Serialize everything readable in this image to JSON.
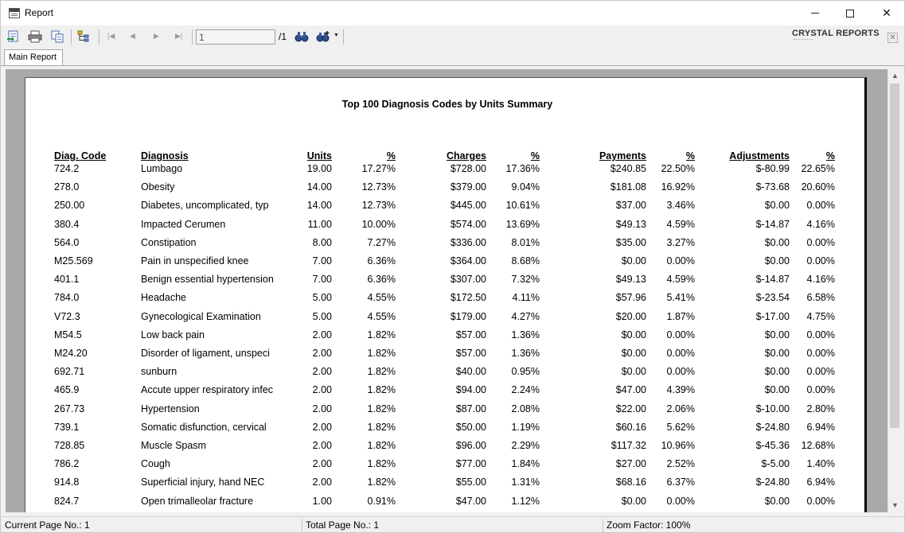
{
  "window": {
    "title": "Report"
  },
  "toolbar": {
    "page_current": "1",
    "page_total": "/1",
    "brand": "CRYSTAL REPORTS",
    "icons": [
      "export-icon",
      "print-icon",
      "copy-icon",
      "group-tree-icon",
      "first-page-icon",
      "prev-page-icon",
      "next-page-icon",
      "last-page-icon",
      "find-icon",
      "zoom-icon"
    ]
  },
  "tabs": [
    {
      "label": "Main Report"
    }
  ],
  "report": {
    "title": "Top 100 Diagnosis Codes by Units Summary",
    "headers": {
      "code": "Diag. Code",
      "diagnosis": "Diagnosis",
      "units": "Units",
      "units_pct": "%",
      "charges": "Charges",
      "charges_pct": "%",
      "payments": "Payments",
      "payments_pct": "%",
      "adjustments": "Adjustments",
      "adjustments_pct": "%"
    },
    "rows": [
      {
        "code": "724.2",
        "diagnosis": "Lumbago",
        "units": "19.00",
        "units_pct": "17.27%",
        "charges": "$728.00",
        "charges_pct": "17.36%",
        "payments": "$240.85",
        "payments_pct": "22.50%",
        "adjustments": "$-80.99",
        "adjustments_pct": "22.65%"
      },
      {
        "code": "278.0",
        "diagnosis": "Obesity",
        "units": "14.00",
        "units_pct": "12.73%",
        "charges": "$379.00",
        "charges_pct": "9.04%",
        "payments": "$181.08",
        "payments_pct": "16.92%",
        "adjustments": "$-73.68",
        "adjustments_pct": "20.60%"
      },
      {
        "code": "250.00",
        "diagnosis": "Diabetes, uncomplicated, typ",
        "units": "14.00",
        "units_pct": "12.73%",
        "charges": "$445.00",
        "charges_pct": "10.61%",
        "payments": "$37.00",
        "payments_pct": "3.46%",
        "adjustments": "$0.00",
        "adjustments_pct": "0.00%"
      },
      {
        "code": "380.4",
        "diagnosis": "Impacted Cerumen",
        "units": "11.00",
        "units_pct": "10.00%",
        "charges": "$574.00",
        "charges_pct": "13.69%",
        "payments": "$49.13",
        "payments_pct": "4.59%",
        "adjustments": "$-14.87",
        "adjustments_pct": "4.16%"
      },
      {
        "code": "564.0",
        "diagnosis": "Constipation",
        "units": "8.00",
        "units_pct": "7.27%",
        "charges": "$336.00",
        "charges_pct": "8.01%",
        "payments": "$35.00",
        "payments_pct": "3.27%",
        "adjustments": "$0.00",
        "adjustments_pct": "0.00%"
      },
      {
        "code": "M25.569",
        "diagnosis": "Pain in unspecified knee",
        "units": "7.00",
        "units_pct": "6.36%",
        "charges": "$364.00",
        "charges_pct": "8.68%",
        "payments": "$0.00",
        "payments_pct": "0.00%",
        "adjustments": "$0.00",
        "adjustments_pct": "0.00%"
      },
      {
        "code": "401.1",
        "diagnosis": "Benign essential hypertension",
        "units": "7.00",
        "units_pct": "6.36%",
        "charges": "$307.00",
        "charges_pct": "7.32%",
        "payments": "$49.13",
        "payments_pct": "4.59%",
        "adjustments": "$-14.87",
        "adjustments_pct": "4.16%"
      },
      {
        "code": "784.0",
        "diagnosis": "Headache",
        "units": "5.00",
        "units_pct": "4.55%",
        "charges": "$172.50",
        "charges_pct": "4.11%",
        "payments": "$57.96",
        "payments_pct": "5.41%",
        "adjustments": "$-23.54",
        "adjustments_pct": "6.58%"
      },
      {
        "code": "V72.3",
        "diagnosis": "Gynecological Examination",
        "units": "5.00",
        "units_pct": "4.55%",
        "charges": "$179.00",
        "charges_pct": "4.27%",
        "payments": "$20.00",
        "payments_pct": "1.87%",
        "adjustments": "$-17.00",
        "adjustments_pct": "4.75%"
      },
      {
        "code": "M54.5",
        "diagnosis": "Low back pain",
        "units": "2.00",
        "units_pct": "1.82%",
        "charges": "$57.00",
        "charges_pct": "1.36%",
        "payments": "$0.00",
        "payments_pct": "0.00%",
        "adjustments": "$0.00",
        "adjustments_pct": "0.00%"
      },
      {
        "code": "M24.20",
        "diagnosis": "Disorder of ligament, unspeci",
        "units": "2.00",
        "units_pct": "1.82%",
        "charges": "$57.00",
        "charges_pct": "1.36%",
        "payments": "$0.00",
        "payments_pct": "0.00%",
        "adjustments": "$0.00",
        "adjustments_pct": "0.00%"
      },
      {
        "code": "692.71",
        "diagnosis": "sunburn",
        "units": "2.00",
        "units_pct": "1.82%",
        "charges": "$40.00",
        "charges_pct": "0.95%",
        "payments": "$0.00",
        "payments_pct": "0.00%",
        "adjustments": "$0.00",
        "adjustments_pct": "0.00%"
      },
      {
        "code": "465.9",
        "diagnosis": "Accute upper respiratory infec",
        "units": "2.00",
        "units_pct": "1.82%",
        "charges": "$94.00",
        "charges_pct": "2.24%",
        "payments": "$47.00",
        "payments_pct": "4.39%",
        "adjustments": "$0.00",
        "adjustments_pct": "0.00%"
      },
      {
        "code": "267.73",
        "diagnosis": "Hypertension",
        "units": "2.00",
        "units_pct": "1.82%",
        "charges": "$87.00",
        "charges_pct": "2.08%",
        "payments": "$22.00",
        "payments_pct": "2.06%",
        "adjustments": "$-10.00",
        "adjustments_pct": "2.80%"
      },
      {
        "code": "739.1",
        "diagnosis": "Somatic disfunction, cervical",
        "units": "2.00",
        "units_pct": "1.82%",
        "charges": "$50.00",
        "charges_pct": "1.19%",
        "payments": "$60.16",
        "payments_pct": "5.62%",
        "adjustments": "$-24.80",
        "adjustments_pct": "6.94%"
      },
      {
        "code": "728.85",
        "diagnosis": "Muscle Spasm",
        "units": "2.00",
        "units_pct": "1.82%",
        "charges": "$96.00",
        "charges_pct": "2.29%",
        "payments": "$117.32",
        "payments_pct": "10.96%",
        "adjustments": "$-45.36",
        "adjustments_pct": "12.68%"
      },
      {
        "code": "786.2",
        "diagnosis": "Cough",
        "units": "2.00",
        "units_pct": "1.82%",
        "charges": "$77.00",
        "charges_pct": "1.84%",
        "payments": "$27.00",
        "payments_pct": "2.52%",
        "adjustments": "$-5.00",
        "adjustments_pct": "1.40%"
      },
      {
        "code": "914.8",
        "diagnosis": "Superficial injury, hand NEC",
        "units": "2.00",
        "units_pct": "1.82%",
        "charges": "$55.00",
        "charges_pct": "1.31%",
        "payments": "$68.16",
        "payments_pct": "6.37%",
        "adjustments": "$-24.80",
        "adjustments_pct": "6.94%"
      },
      {
        "code": "824.7",
        "diagnosis": "Open trimalleolar fracture",
        "units": "1.00",
        "units_pct": "0.91%",
        "charges": "$47.00",
        "charges_pct": "1.12%",
        "payments": "$0.00",
        "payments_pct": "0.00%",
        "adjustments": "$0.00",
        "adjustments_pct": "0.00%"
      }
    ]
  },
  "status": {
    "current_page": "Current Page No.: 1",
    "total_page": "Total Page No.: 1",
    "zoom": "Zoom Factor: 100%"
  }
}
